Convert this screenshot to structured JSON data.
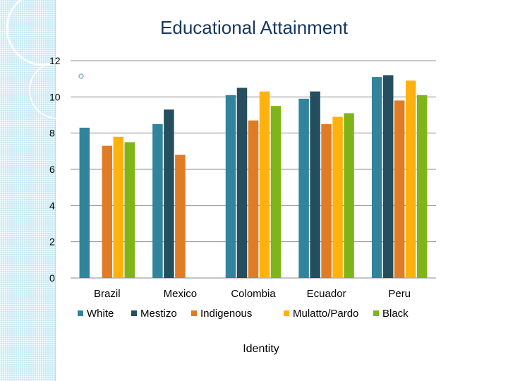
{
  "chart_data": {
    "type": "bar",
    "title": "Educational Attainment",
    "xlabel": "Identity",
    "ylabel": "",
    "ylim": [
      0,
      12
    ],
    "yticks": [
      0,
      2,
      4,
      6,
      8,
      10,
      12
    ],
    "grid": true,
    "legend_position": "bottom",
    "categories": [
      "Brazil",
      "Mexico",
      "Colombia",
      "Ecuador",
      "Peru"
    ],
    "series": [
      {
        "name": "White",
        "color": "#31849b",
        "values": [
          8.3,
          8.5,
          10.1,
          9.9,
          11.1
        ]
      },
      {
        "name": "Mestizo",
        "color": "#254e5f",
        "values": [
          null,
          9.3,
          10.5,
          10.3,
          11.2
        ]
      },
      {
        "name": "Indigenous",
        "color": "#e07b26",
        "values": [
          7.3,
          6.8,
          8.7,
          8.5,
          9.8
        ]
      },
      {
        "name": "Mulatto/Pardo",
        "color": "#ffb20e",
        "values": [
          7.8,
          null,
          10.3,
          8.9,
          10.9
        ]
      },
      {
        "name": "Black",
        "color": "#7fb518",
        "values": [
          7.5,
          null,
          9.5,
          9.1,
          10.1
        ]
      }
    ]
  }
}
